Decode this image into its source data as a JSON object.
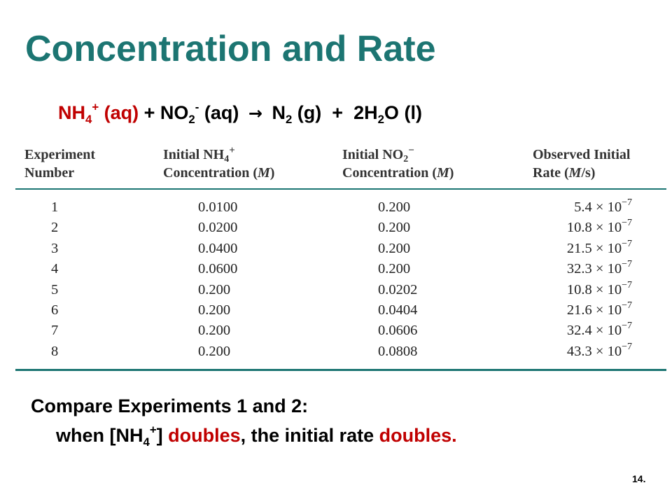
{
  "title": "Concentration and Rate",
  "equation": {
    "nh4": "NH",
    "nh4_sub": "4",
    "nh4_sup": "+",
    "nh4_state": "(aq)",
    "plus1": "+",
    "no2": "NO",
    "no2_sub": "2",
    "no2_sup": "-",
    "no2_state": "(aq)",
    "arrow": "→",
    "n2": "N",
    "n2_sub": "2",
    "n2_state": "(g)",
    "plus2": "+",
    "h2o_coef": "2H",
    "h2o_sub": "2",
    "h2o_o": "O",
    "h2o_state": "(l)",
    "colors": {
      "reactant": "#c00000",
      "text": "#000000"
    }
  },
  "table": {
    "headers": {
      "exp_line1": "Experiment",
      "exp_line2": "Number",
      "nh4_line1": "Initial NH",
      "nh4_sub": "4",
      "nh4_sup": "+",
      "nh4_line2": "Concentration (",
      "nh4_unit": "M",
      "nh4_close": ")",
      "no2_line1": "Initial NO",
      "no2_sub": "2",
      "no2_sup": "−",
      "no2_line2": "Concentration (",
      "no2_unit": "M",
      "no2_close": ")",
      "rate_line1": "Observed Initial",
      "rate_line2": "Rate (",
      "rate_unit": "M",
      "rate_close": "/s)"
    },
    "rows": [
      {
        "exp": "1",
        "nh4": "0.0100",
        "no2": "0.200",
        "rate": "5.4 × 10",
        "rate_exp": "−7"
      },
      {
        "exp": "2",
        "nh4": "0.0200",
        "no2": "0.200",
        "rate": "10.8 × 10",
        "rate_exp": "−7"
      },
      {
        "exp": "3",
        "nh4": "0.0400",
        "no2": "0.200",
        "rate": "21.5 × 10",
        "rate_exp": "−7"
      },
      {
        "exp": "4",
        "nh4": "0.0600",
        "no2": "0.200",
        "rate": "32.3 × 10",
        "rate_exp": "−7"
      },
      {
        "exp": "5",
        "nh4": "0.200",
        "no2": "0.0202",
        "rate": "10.8 × 10",
        "rate_exp": "−7"
      },
      {
        "exp": "6",
        "nh4": "0.200",
        "no2": "0.0404",
        "rate": "21.6 × 10",
        "rate_exp": "−7"
      },
      {
        "exp": "7",
        "nh4": "0.200",
        "no2": "0.0606",
        "rate": "32.4 × 10",
        "rate_exp": "−7"
      },
      {
        "exp": "8",
        "nh4": "0.200",
        "no2": "0.0808",
        "rate": "43.3 × 10",
        "rate_exp": "−7"
      }
    ],
    "rule_color": "#1c7572"
  },
  "compare": {
    "line1": "Compare Experiments 1 and 2:",
    "line2_a": "when [NH",
    "line2_sub": "4",
    "line2_sup": "+",
    "line2_b": "] ",
    "line2_doubles1": "doubles",
    "line2_c": ", the initial rate ",
    "line2_doubles2": "doubles.",
    "highlight_color": "#c00000"
  },
  "page_number": "14.",
  "colors": {
    "title": "#1c7572",
    "accent_red": "#c00000"
  }
}
